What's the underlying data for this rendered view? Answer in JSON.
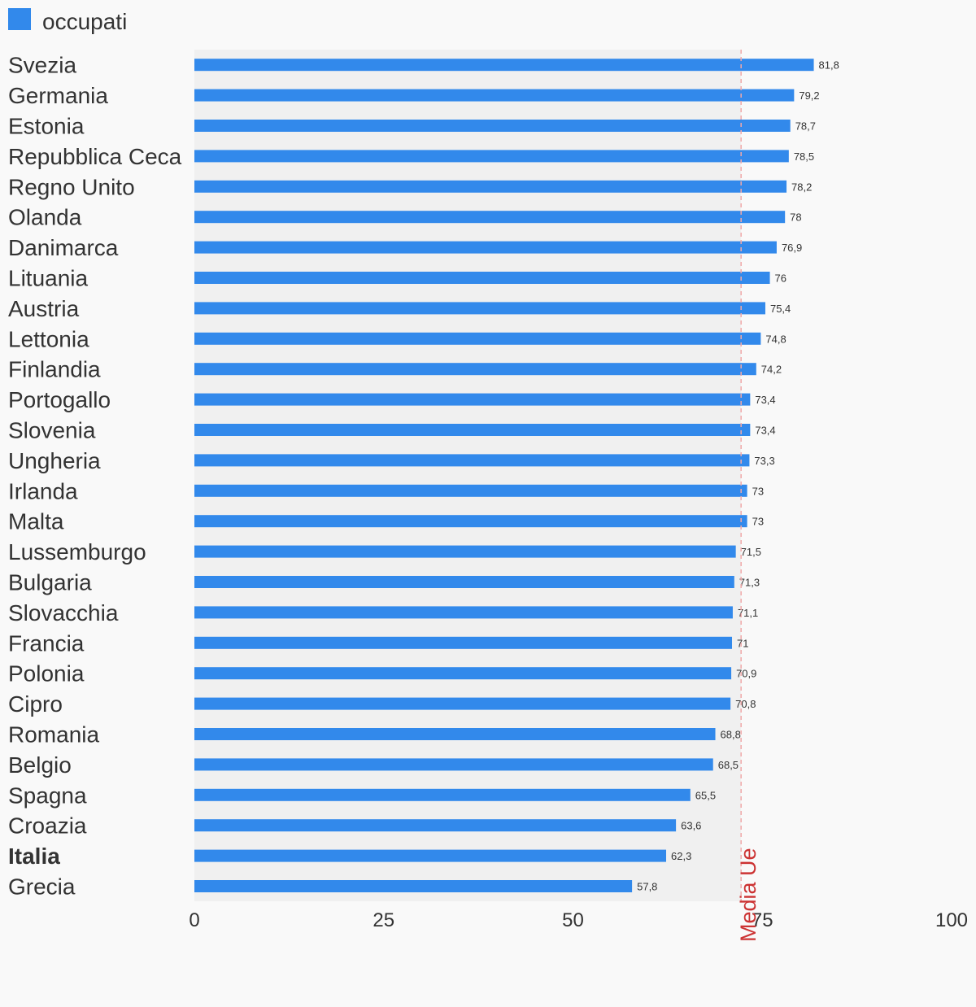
{
  "colors": {
    "bar": "#3289eb",
    "reference": "#cc3333",
    "plot_background": "#f0f0f0",
    "page_background": "#f9f9f9"
  },
  "chart_data": {
    "type": "bar",
    "orientation": "horizontal",
    "legend": {
      "position": "top-left",
      "entries": [
        "occupati"
      ]
    },
    "grid": false,
    "xlim": [
      0,
      100
    ],
    "xticks": [
      "0",
      "25",
      "50",
      "75",
      "100"
    ],
    "highlighted_category": "Italia",
    "reference_line": {
      "label": "Media Ue",
      "value": 72.2
    },
    "categories": [
      "Svezia",
      "Germania",
      "Estonia",
      "Repubblica Ceca",
      "Regno Unito",
      "Olanda",
      "Danimarca",
      "Lituania",
      "Austria",
      "Lettonia",
      "Finlandia",
      "Portogallo",
      "Slovenia",
      "Ungheria",
      "Irlanda",
      "Malta",
      "Lussemburgo",
      "Bulgaria",
      "Slovacchia",
      "Francia",
      "Polonia",
      "Cipro",
      "Romania",
      "Belgio",
      "Spagna",
      "Croazia",
      "Italia",
      "Grecia"
    ],
    "series": [
      {
        "name": "occupati",
        "values": [
          81.8,
          79.2,
          78.7,
          78.5,
          78.2,
          78,
          76.9,
          76,
          75.4,
          74.8,
          74.2,
          73.4,
          73.4,
          73.3,
          73,
          73,
          71.5,
          71.3,
          71.1,
          71,
          70.9,
          70.8,
          68.8,
          68.5,
          65.5,
          63.6,
          62.3,
          57.8
        ],
        "labels": [
          "81,8",
          "79,2",
          "78,7",
          "78,5",
          "78,2",
          "78",
          "76,9",
          "76",
          "75,4",
          "74,8",
          "74,2",
          "73,4",
          "73,4",
          "73,3",
          "73",
          "73",
          "71,5",
          "71,3",
          "71,1",
          "71",
          "70,9",
          "70,8",
          "68,8",
          "68,5",
          "65,5",
          "63,6",
          "62,3",
          "57,8"
        ]
      }
    ]
  }
}
